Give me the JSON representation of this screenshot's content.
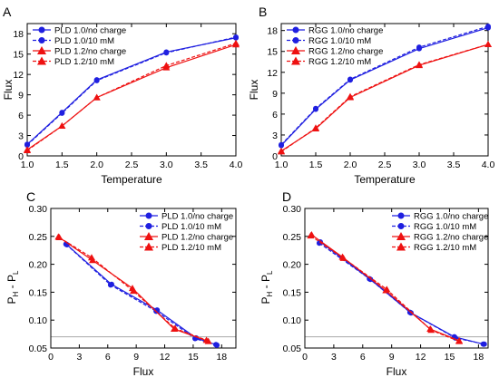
{
  "colors": {
    "blue": "#1f1fe0",
    "red": "#ee1111",
    "ref_line": "#aaaaaa"
  },
  "chart_data": [
    {
      "panel": "A",
      "type": "line",
      "xlabel": "Temperature",
      "ylabel": "Flux",
      "xlim": [
        1.0,
        4.0
      ],
      "ylim": [
        0,
        19.5
      ],
      "xticks": [
        "1.0",
        "1.5",
        "2.0",
        "2.5",
        "3.0",
        "3.5",
        "4.0"
      ],
      "yticks": [
        "0",
        "3",
        "6",
        "9",
        "12",
        "15",
        "18"
      ],
      "legend_position": "top-left",
      "series": [
        {
          "name": "PLD 1.0/no charge",
          "color": "blue",
          "dash": false,
          "marker": "circle",
          "x": [
            1.0,
            1.5,
            2.0,
            3.0,
            4.0
          ],
          "y": [
            1.7,
            6.4,
            11.2,
            15.3,
            17.4
          ]
        },
        {
          "name": "PLD 1.0/10 mM",
          "color": "blue",
          "dash": true,
          "marker": "circle",
          "x": [
            1.0,
            1.5,
            2.0,
            3.0,
            4.0
          ],
          "y": [
            1.6,
            6.3,
            11.1,
            15.2,
            17.5
          ]
        },
        {
          "name": "PLD 1.2/no charge",
          "color": "red",
          "dash": false,
          "marker": "triangle",
          "x": [
            1.0,
            1.5,
            2.0,
            3.0,
            4.0
          ],
          "y": [
            0.9,
            4.4,
            8.6,
            13.0,
            16.4
          ]
        },
        {
          "name": "PLD 1.2/10 mM",
          "color": "red",
          "dash": true,
          "marker": "triangle",
          "x": [
            1.0,
            1.5,
            2.0,
            3.0,
            4.0
          ],
          "y": [
            0.8,
            4.4,
            8.6,
            13.3,
            16.6
          ]
        }
      ]
    },
    {
      "panel": "B",
      "type": "line",
      "xlabel": "Temperature",
      "ylabel": "Flux",
      "xlim": [
        1.0,
        4.0
      ],
      "ylim": [
        0,
        19.0
      ],
      "xticks": [
        "1.0",
        "1.5",
        "2.0",
        "2.5",
        "3.0",
        "3.5",
        "4.0"
      ],
      "yticks": [
        "0",
        "3",
        "6",
        "9",
        "12",
        "15",
        "18"
      ],
      "legend_position": "top-left",
      "series": [
        {
          "name": "RGG 1.0/no charge",
          "color": "blue",
          "dash": false,
          "marker": "circle",
          "x": [
            1.0,
            1.5,
            2.0,
            3.0,
            4.0
          ],
          "y": [
            1.5,
            6.7,
            10.9,
            15.4,
            18.4
          ]
        },
        {
          "name": "RGG 1.0/10 mM",
          "color": "blue",
          "dash": true,
          "marker": "circle",
          "x": [
            1.0,
            1.5,
            2.0,
            3.0,
            4.0
          ],
          "y": [
            1.6,
            6.8,
            11.0,
            15.6,
            18.6
          ]
        },
        {
          "name": "RGG 1.2/no charge",
          "color": "red",
          "dash": false,
          "marker": "triangle",
          "x": [
            1.0,
            1.5,
            2.0,
            3.0,
            4.0
          ],
          "y": [
            0.7,
            3.9,
            8.4,
            13.0,
            16.0
          ]
        },
        {
          "name": "RGG 1.2/10 mM",
          "color": "red",
          "dash": true,
          "marker": "triangle",
          "x": [
            1.0,
            1.5,
            2.0,
            3.0,
            4.0
          ],
          "y": [
            0.6,
            4.0,
            8.5,
            13.1,
            16.0
          ]
        }
      ]
    },
    {
      "panel": "C",
      "type": "line",
      "xlabel": "Flux",
      "ylabel_main": "P",
      "ylabel_sub1": "H",
      "ylabel_mid": " - P",
      "ylabel_sub2": "L",
      "xlim": [
        0,
        19.5
      ],
      "ylim": [
        0.05,
        0.3
      ],
      "xticks": [
        "0",
        "3",
        "6",
        "9",
        "12",
        "15",
        "18"
      ],
      "yticks": [
        "0.05",
        "0.10",
        "0.15",
        "0.20",
        "0.25",
        "0.30"
      ],
      "reference_y": 0.07,
      "legend_position": "top-right",
      "series": [
        {
          "name": "PLD 1.0/no charge",
          "color": "blue",
          "dash": false,
          "marker": "circle",
          "x": [
            1.7,
            6.4,
            11.2,
            15.3,
            17.4
          ],
          "y": [
            0.235,
            0.164,
            0.118,
            0.068,
            0.056
          ]
        },
        {
          "name": "PLD 1.0/10 mM",
          "color": "blue",
          "dash": true,
          "marker": "circle",
          "x": [
            1.6,
            6.3,
            11.1,
            15.2,
            17.5
          ],
          "y": [
            0.236,
            0.163,
            0.116,
            0.067,
            0.055
          ]
        },
        {
          "name": "PLD 1.2/no charge",
          "color": "red",
          "dash": false,
          "marker": "triangle",
          "x": [
            0.8,
            4.4,
            8.6,
            13.0,
            16.6
          ],
          "y": [
            0.249,
            0.207,
            0.157,
            0.084,
            0.062
          ]
        },
        {
          "name": "PLD 1.2/10 mM",
          "color": "red",
          "dash": true,
          "marker": "triangle",
          "x": [
            0.9,
            4.3,
            8.7,
            13.1,
            16.4
          ],
          "y": [
            0.248,
            0.212,
            0.152,
            0.085,
            0.064
          ]
        }
      ]
    },
    {
      "panel": "D",
      "type": "line",
      "xlabel": "Flux",
      "ylabel_main": "P",
      "ylabel_sub1": "H",
      "ylabel_mid": " - P",
      "ylabel_sub2": "L",
      "xlim": [
        0,
        19.0
      ],
      "ylim": [
        0.05,
        0.3
      ],
      "xticks": [
        "0",
        "3",
        "6",
        "9",
        "12",
        "15",
        "18"
      ],
      "yticks": [
        "0.05",
        "0.10",
        "0.15",
        "0.20",
        "0.25",
        "0.30"
      ],
      "reference_y": 0.07,
      "legend_position": "top-right",
      "series": [
        {
          "name": "RGG 1.0/no charge",
          "color": "blue",
          "dash": false,
          "marker": "circle",
          "x": [
            1.6,
            6.8,
            11.0,
            15.5,
            18.5
          ],
          "y": [
            0.24,
            0.173,
            0.113,
            0.07,
            0.057
          ]
        },
        {
          "name": "RGG 1.0/10 mM",
          "color": "blue",
          "dash": true,
          "marker": "circle",
          "x": [
            1.5,
            6.7,
            10.9,
            15.6,
            18.6
          ],
          "y": [
            0.238,
            0.174,
            0.114,
            0.068,
            0.057
          ]
        },
        {
          "name": "RGG 1.2/no charge",
          "color": "red",
          "dash": false,
          "marker": "triangle",
          "x": [
            0.7,
            3.9,
            8.4,
            13.0,
            16.0
          ],
          "y": [
            0.253,
            0.213,
            0.153,
            0.084,
            0.063
          ]
        },
        {
          "name": "RGG 1.2/10 mM",
          "color": "red",
          "dash": true,
          "marker": "triangle",
          "x": [
            0.6,
            4.0,
            8.5,
            13.1,
            16.0
          ],
          "y": [
            0.251,
            0.211,
            0.155,
            0.082,
            0.062
          ]
        }
      ]
    }
  ]
}
